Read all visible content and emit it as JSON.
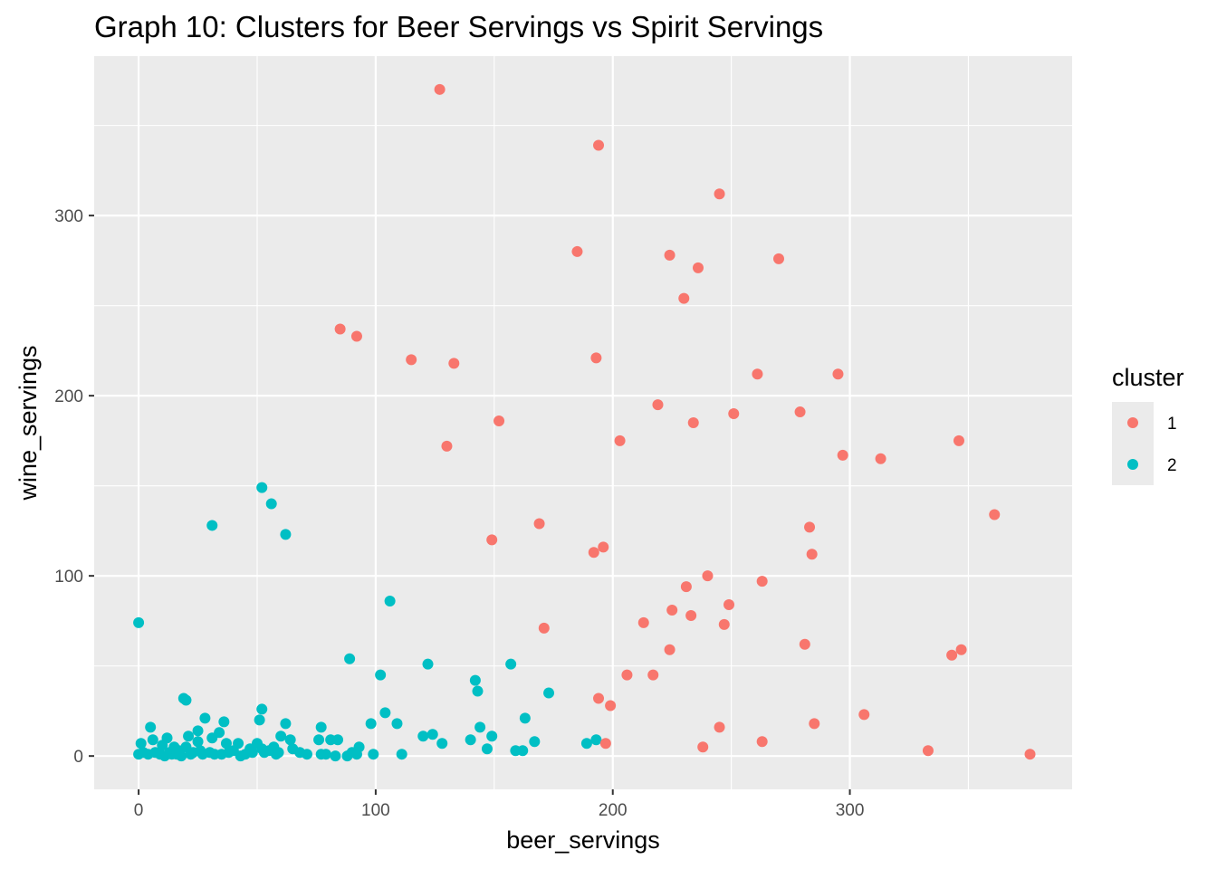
{
  "chart_data": {
    "type": "scatter",
    "title": "Graph 10: Clusters for Beer Servings vs Spirit Servings",
    "xlabel": "beer_servings",
    "ylabel": "wine_servings",
    "xlim": [
      -18.75,
      393.75
    ],
    "ylim": [
      -18.5,
      388.5
    ],
    "xticks": [
      0,
      100,
      200,
      300
    ],
    "yticks": [
      0,
      100,
      200,
      300
    ],
    "grid": true,
    "legend": {
      "title": "cluster",
      "position": "right"
    },
    "series": [
      {
        "name": "1",
        "color": "#F8766D",
        "points": [
          [
            127,
            370
          ],
          [
            194,
            339
          ],
          [
            245,
            312
          ],
          [
            185,
            280
          ],
          [
            224,
            278
          ],
          [
            270,
            276
          ],
          [
            236,
            271
          ],
          [
            230,
            254
          ],
          [
            85,
            237
          ],
          [
            92,
            233
          ],
          [
            115,
            220
          ],
          [
            133,
            218
          ],
          [
            193,
            221
          ],
          [
            261,
            212
          ],
          [
            295,
            212
          ],
          [
            219,
            195
          ],
          [
            251,
            190
          ],
          [
            279,
            191
          ],
          [
            152,
            186
          ],
          [
            234,
            185
          ],
          [
            130,
            172
          ],
          [
            203,
            175
          ],
          [
            297,
            167
          ],
          [
            313,
            165
          ],
          [
            346,
            175
          ],
          [
            361,
            134
          ],
          [
            169,
            129
          ],
          [
            283,
            127
          ],
          [
            149,
            120
          ],
          [
            192,
            113
          ],
          [
            196,
            116
          ],
          [
            284,
            112
          ],
          [
            240,
            100
          ],
          [
            263,
            97
          ],
          [
            231,
            94
          ],
          [
            249,
            84
          ],
          [
            225,
            81
          ],
          [
            233,
            78
          ],
          [
            213,
            74
          ],
          [
            247,
            73
          ],
          [
            171,
            71
          ],
          [
            281,
            62
          ],
          [
            224,
            59
          ],
          [
            343,
            56
          ],
          [
            347,
            59
          ],
          [
            206,
            45
          ],
          [
            217,
            45
          ],
          [
            194,
            32
          ],
          [
            199,
            28
          ],
          [
            306,
            23
          ],
          [
            245,
            16
          ],
          [
            285,
            18
          ],
          [
            197,
            7
          ],
          [
            238,
            5
          ],
          [
            263,
            8
          ],
          [
            333,
            3
          ],
          [
            376,
            1
          ]
        ]
      },
      {
        "name": "2",
        "color": "#00BFC4",
        "points": [
          [
            0,
            74
          ],
          [
            52,
            149
          ],
          [
            56,
            140
          ],
          [
            31,
            128
          ],
          [
            62,
            123
          ],
          [
            106,
            86
          ],
          [
            89,
            54
          ],
          [
            122,
            51
          ],
          [
            157,
            51
          ],
          [
            102,
            45
          ],
          [
            142,
            42
          ],
          [
            143,
            36
          ],
          [
            173,
            35
          ],
          [
            19,
            32
          ],
          [
            20,
            31
          ],
          [
            104,
            24
          ],
          [
            52,
            26
          ],
          [
            163,
            21
          ],
          [
            28,
            21
          ],
          [
            51,
            20
          ],
          [
            36,
            19
          ],
          [
            62,
            18
          ],
          [
            98,
            18
          ],
          [
            109,
            18
          ],
          [
            5,
            16
          ],
          [
            77,
            16
          ],
          [
            144,
            16
          ],
          [
            25,
            14
          ],
          [
            34,
            13
          ],
          [
            124,
            12
          ],
          [
            120,
            11
          ],
          [
            149,
            11
          ],
          [
            12,
            10
          ],
          [
            21,
            11
          ],
          [
            60,
            11
          ],
          [
            6,
            9
          ],
          [
            31,
            10
          ],
          [
            64,
            9
          ],
          [
            76,
            9
          ],
          [
            81,
            9
          ],
          [
            84,
            9
          ],
          [
            140,
            9
          ],
          [
            193,
            9
          ],
          [
            1,
            7
          ],
          [
            10,
            6
          ],
          [
            25,
            8
          ],
          [
            37,
            7
          ],
          [
            42,
            7
          ],
          [
            50,
            7
          ],
          [
            57,
            5
          ],
          [
            128,
            7
          ],
          [
            167,
            8
          ],
          [
            189,
            7
          ],
          [
            15,
            5
          ],
          [
            20,
            5
          ],
          [
            47,
            4
          ],
          [
            52,
            4
          ],
          [
            65,
            4
          ],
          [
            93,
            5
          ],
          [
            147,
            4
          ],
          [
            0,
            1
          ],
          [
            2,
            2
          ],
          [
            4,
            1
          ],
          [
            7,
            2
          ],
          [
            9,
            1
          ],
          [
            11,
            0
          ],
          [
            13,
            2
          ],
          [
            14,
            1
          ],
          [
            16,
            1
          ],
          [
            17,
            3
          ],
          [
            18,
            0
          ],
          [
            22,
            1
          ],
          [
            23,
            2
          ],
          [
            26,
            3
          ],
          [
            27,
            1
          ],
          [
            30,
            2
          ],
          [
            32,
            1
          ],
          [
            35,
            1
          ],
          [
            38,
            2
          ],
          [
            40,
            3
          ],
          [
            43,
            0
          ],
          [
            45,
            1
          ],
          [
            48,
            2
          ],
          [
            53,
            2
          ],
          [
            55,
            3
          ],
          [
            58,
            1
          ],
          [
            59,
            2
          ],
          [
            68,
            2
          ],
          [
            71,
            1
          ],
          [
            77,
            1
          ],
          [
            79,
            1
          ],
          [
            83,
            0
          ],
          [
            88,
            0
          ],
          [
            90,
            2
          ],
          [
            92,
            1
          ],
          [
            99,
            1
          ],
          [
            111,
            1
          ],
          [
            159,
            3
          ],
          [
            162,
            3
          ]
        ]
      }
    ]
  }
}
